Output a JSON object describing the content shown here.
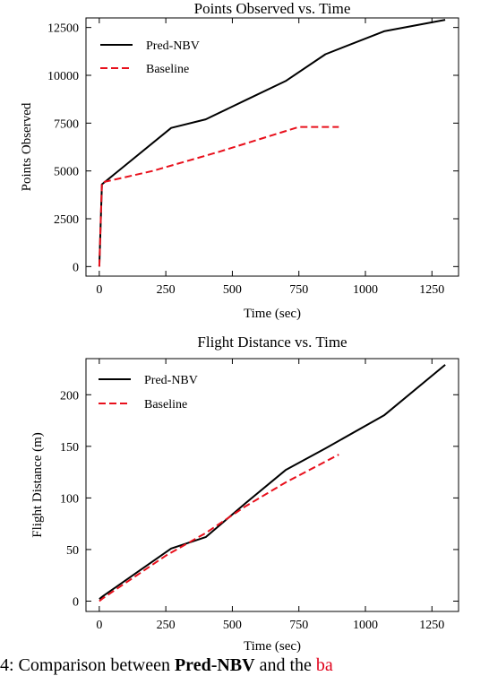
{
  "chart_data": [
    {
      "type": "line",
      "title": "Points Observed vs. Time",
      "xlabel": "Time (sec)",
      "ylabel": "Points Observed",
      "xlim": [
        -50,
        1350
      ],
      "ylim": [
        -500,
        13000
      ],
      "xticks": [
        0,
        250,
        500,
        750,
        1000,
        1250
      ],
      "yticks": [
        0,
        2500,
        5000,
        7500,
        10000,
        12500
      ],
      "grid": false,
      "legend_position": "top-left",
      "series": [
        {
          "name": "Pred-NBV",
          "color": "#000000",
          "dashed": false,
          "x": [
            0,
            10,
            270,
            400,
            550,
            700,
            850,
            1070,
            1300
          ],
          "y": [
            0,
            4300,
            7250,
            7700,
            8700,
            9700,
            11100,
            12300,
            12900
          ]
        },
        {
          "name": "Baseline",
          "color": "#e8101c",
          "dashed": true,
          "x": [
            0,
            10,
            200,
            450,
            750,
            900
          ],
          "y": [
            0,
            4400,
            5000,
            6000,
            7300,
            7300
          ]
        }
      ]
    },
    {
      "type": "line",
      "title": "Flight Distance vs. Time",
      "xlabel": "Time (sec)",
      "ylabel": "Flight Distance (m)",
      "xlim": [
        -50,
        1350
      ],
      "ylim": [
        -10,
        235
      ],
      "xticks": [
        0,
        250,
        500,
        750,
        1000,
        1250
      ],
      "yticks": [
        0,
        50,
        100,
        150,
        200
      ],
      "grid": false,
      "legend_position": "top-left",
      "series": [
        {
          "name": "Pred-NBV",
          "color": "#000000",
          "dashed": false,
          "x": [
            0,
            15,
            270,
            400,
            550,
            700,
            850,
            1070,
            1300
          ],
          "y": [
            2,
            5,
            51,
            62,
            95,
            127,
            148,
            180,
            229
          ]
        },
        {
          "name": "Baseline",
          "color": "#e8101c",
          "dashed": true,
          "x": [
            0,
            15,
            250,
            400,
            550,
            700,
            900
          ],
          "y": [
            0,
            3,
            44,
            66,
            92,
            115,
            142
          ]
        }
      ]
    }
  ],
  "caption": {
    "prefix": "4: Comparison between ",
    "bold": "Pred-NBV",
    "middle": " and the ",
    "red": "ba"
  }
}
